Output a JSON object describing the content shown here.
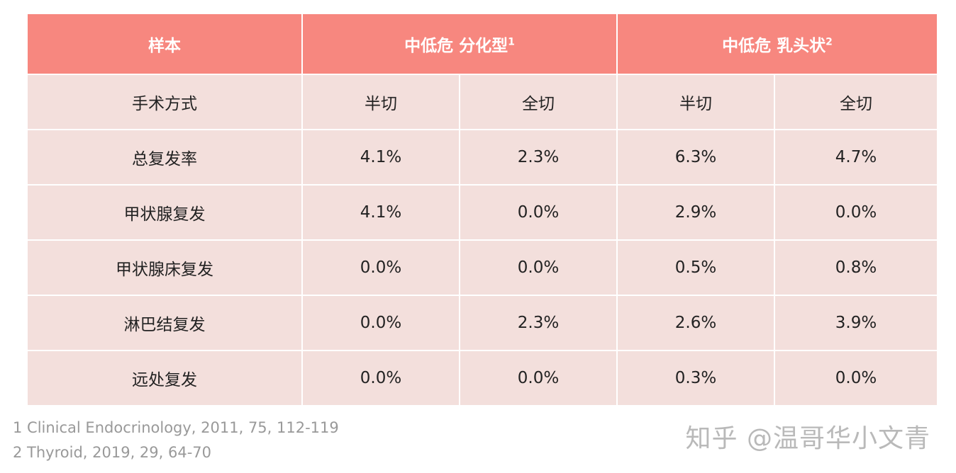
{
  "header": {
    "sample_label": "样本",
    "group1": {
      "label": "中低危 分化型",
      "sup": "1"
    },
    "group2": {
      "label": "中低危 乳头状",
      "sup": "2"
    }
  },
  "rows": [
    {
      "label": "手术方式",
      "cells": [
        "半切",
        "全切",
        "半切",
        "全切"
      ]
    },
    {
      "label": "总复发率",
      "cells": [
        "4.1%",
        "2.3%",
        "6.3%",
        "4.7%"
      ]
    },
    {
      "label": "甲状腺复发",
      "cells": [
        "4.1%",
        "0.0%",
        "2.9%",
        "0.0%"
      ]
    },
    {
      "label": "甲状腺床复发",
      "cells": [
        "0.0%",
        "0.0%",
        "0.5%",
        "0.8%"
      ]
    },
    {
      "label": "淋巴结复发",
      "cells": [
        "0.0%",
        "2.3%",
        "2.6%",
        "3.9%"
      ]
    },
    {
      "label": "远处复发",
      "cells": [
        "0.0%",
        "0.0%",
        "0.3%",
        "0.0%"
      ]
    }
  ],
  "footnotes": [
    "1 Clinical Endocrinology, 2011, 75, 112-119",
    "2 Thyroid, 2019, 29, 64-70"
  ],
  "watermark": "知乎 @温哥华小文青",
  "colors": {
    "header_bg": "#f7877f",
    "body_bg": "#f3dfdc",
    "footnote_text": "#999999"
  }
}
